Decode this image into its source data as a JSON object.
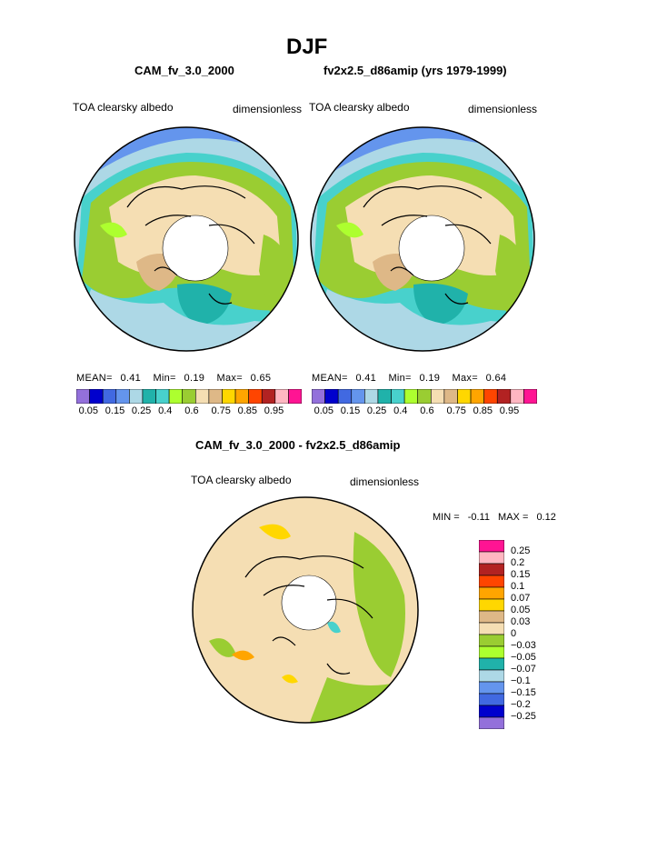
{
  "title": "DJF",
  "panels": [
    {
      "heading": "CAM_fv_3.0_2000",
      "left_label": "TOA clearsky albedo",
      "right_label": "dimensionless",
      "stats": {
        "mean_label": "MEAN=",
        "mean": "0.41",
        "min_label": "Min=",
        "min": "0.19",
        "max_label": "Max=",
        "max": "0.65"
      }
    },
    {
      "heading": "fv2x2.5_d86amip (yrs 1979-1999)",
      "left_label": "TOA clearsky albedo",
      "right_label": "dimensionless",
      "stats": {
        "mean_label": "MEAN=",
        "mean": "0.41",
        "min_label": "Min=",
        "min": "0.19",
        "max_label": "Max=",
        "max": "0.64"
      }
    }
  ],
  "top_colorbar": {
    "colors": [
      "#9370db",
      "#0000cd",
      "#4169e1",
      "#6495ed",
      "#add8e6",
      "#20b2aa",
      "#48d1cc",
      "#adff2f",
      "#9acd32",
      "#f5deb3",
      "#deb887",
      "#ffd700",
      "#ffa500",
      "#ff4500",
      "#b22222",
      "#ffb6c1",
      "#ff1493"
    ],
    "tick_labels": [
      "0.05",
      "0.15",
      "0.25",
      "0.4",
      "0.6",
      "0.75",
      "0.85",
      "0.95"
    ]
  },
  "diff": {
    "heading": "CAM_fv_3.0_2000 - fv2x2.5_d86amip",
    "left_label": "TOA clearsky albedo",
    "right_label": "dimensionless",
    "min_label": "MIN =",
    "min": "-0.11",
    "max_label": "MAX =",
    "max": "0.12",
    "colorbar": {
      "colors": [
        "#ff1493",
        "#ffb6c1",
        "#b22222",
        "#ff4500",
        "#ffa500",
        "#ffd700",
        "#deb887",
        "#f5deb3",
        "#9acd32",
        "#adff2f",
        "#20b2aa",
        "#add8e6",
        "#6495ed",
        "#4169e1",
        "#0000cd",
        "#9370db"
      ],
      "tick_labels": [
        "0.25",
        "0.2",
        "0.15",
        "0.1",
        "0.07",
        "0.05",
        "0.03",
        "0",
        "-0.03",
        "-0.05",
        "-0.07",
        "-0.1",
        "-0.15",
        "-0.2",
        "-0.25"
      ]
    }
  }
}
